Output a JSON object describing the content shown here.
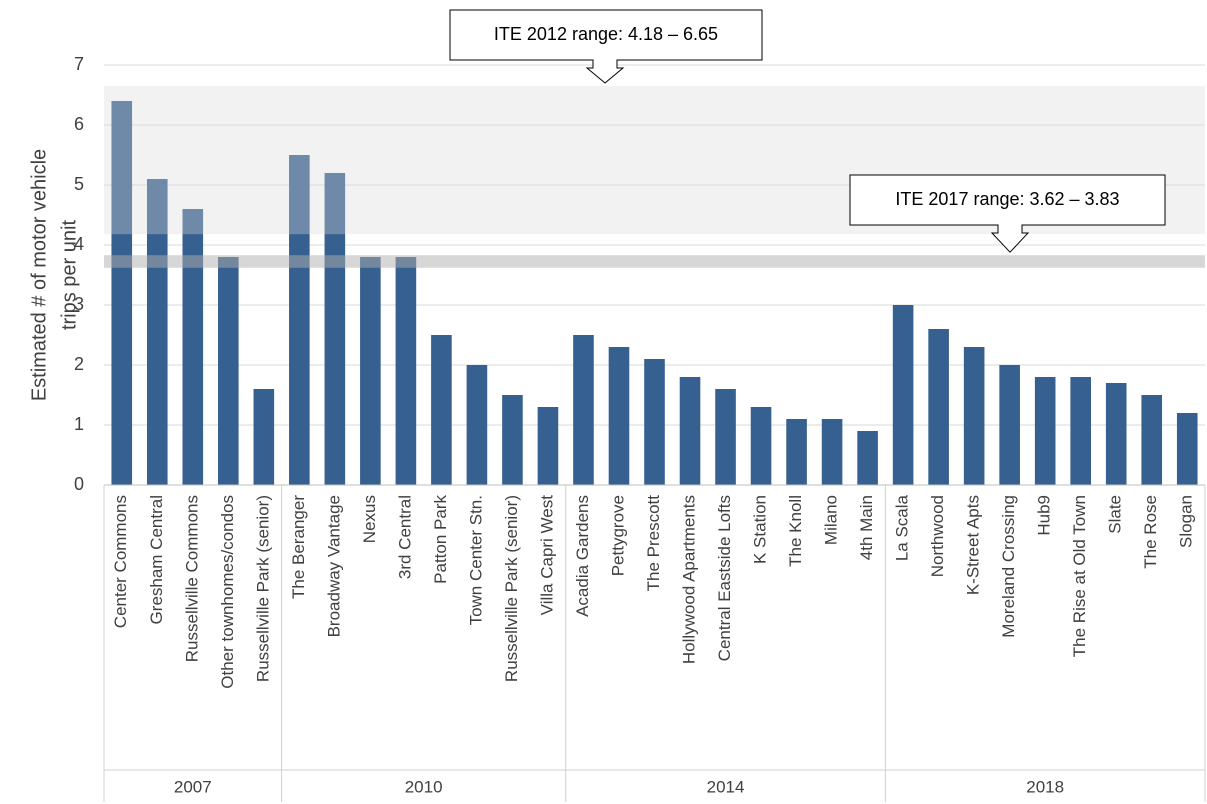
{
  "chart_data": {
    "type": "bar",
    "ylabel": [
      "Estimated # of motor vehicle",
      "trips per unit"
    ],
    "categories": [
      "Center Commons",
      "Gresham Central",
      "Russellville Commons",
      "Other townhomes/condos",
      "Russellville Park (senior)",
      "The Beranger",
      "Broadway Vantage",
      "Nexus",
      "3rd Central",
      "Patton Park",
      "Town Center Stn.",
      "Russellville Park (senior)",
      "Villa Capri West",
      "Acadia Gardens",
      "Pettygrove",
      "The Prescott",
      "Hollywood Apartments",
      "Central Eastside Lofts",
      "K Station",
      "The Knoll",
      "Milano",
      "4th Main",
      "La Scala",
      "Northwood",
      "K-Street Apts",
      "Moreland Crossing",
      "Hub9",
      "The Rise at Old Town",
      "Slate",
      "The Rose",
      "Slogan"
    ],
    "category_groups": [
      "2007",
      "2007",
      "2007",
      "2007",
      "2007",
      "2010",
      "2010",
      "2010",
      "2010",
      "2010",
      "2010",
      "2010",
      "2010",
      "2014",
      "2014",
      "2014",
      "2014",
      "2014",
      "2014",
      "2014",
      "2014",
      "2014",
      "2018",
      "2018",
      "2018",
      "2018",
      "2018",
      "2018",
      "2018",
      "2018",
      "2018"
    ],
    "values": [
      6.4,
      5.1,
      4.6,
      3.8,
      1.6,
      5.5,
      5.2,
      3.8,
      3.8,
      2.5,
      2.0,
      1.5,
      1.3,
      2.5,
      2.3,
      2.1,
      1.8,
      1.6,
      1.3,
      1.1,
      1.1,
      0.9,
      3.0,
      2.6,
      2.3,
      2.0,
      1.8,
      1.8,
      1.7,
      1.5,
      1.2
    ],
    "color": "#36608f",
    "ranges": [
      {
        "label": "ITE 2012 range: 4.18 – 6.65",
        "low": 4.18,
        "high": 6.65,
        "color": "#d9d9d9"
      },
      {
        "label": "ITE 2017 range: 3.62 – 3.83",
        "low": 3.62,
        "high": 3.83,
        "color": "#b0b0b0"
      }
    ],
    "ylim": [
      0,
      7
    ],
    "yticks": [
      0,
      1,
      2,
      3,
      4,
      5,
      6,
      7
    ],
    "grid": true
  }
}
